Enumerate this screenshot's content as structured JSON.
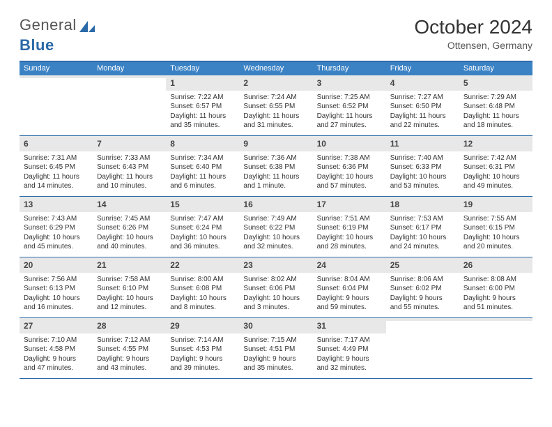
{
  "colors": {
    "header_blue": "#3b82c4",
    "border_blue": "#2b6aa8",
    "row_gray": "#e8e8e8",
    "white": "#ffffff",
    "text_dark": "#333333"
  },
  "typography": {
    "title_fontsize": 28,
    "location_fontsize": 14,
    "dayheader_fontsize": 11,
    "daynum_fontsize": 12,
    "details_fontsize": 10,
    "font_family": "Arial"
  },
  "logo": {
    "text_general": "General",
    "text_blue": "Blue",
    "general_color": "#555555",
    "blue_color": "#2b6aa8",
    "icon_fill": "#2b6aa8"
  },
  "title": "October 2024",
  "location": "Ottensen, Germany",
  "day_labels": [
    "Sunday",
    "Monday",
    "Tuesday",
    "Wednesday",
    "Thursday",
    "Friday",
    "Saturday"
  ],
  "weeks": [
    [
      {
        "n": "",
        "sunrise": "",
        "sunset": "",
        "daylight": ""
      },
      {
        "n": "",
        "sunrise": "",
        "sunset": "",
        "daylight": ""
      },
      {
        "n": "1",
        "sunrise": "Sunrise: 7:22 AM",
        "sunset": "Sunset: 6:57 PM",
        "daylight": "Daylight: 11 hours and 35 minutes."
      },
      {
        "n": "2",
        "sunrise": "Sunrise: 7:24 AM",
        "sunset": "Sunset: 6:55 PM",
        "daylight": "Daylight: 11 hours and 31 minutes."
      },
      {
        "n": "3",
        "sunrise": "Sunrise: 7:25 AM",
        "sunset": "Sunset: 6:52 PM",
        "daylight": "Daylight: 11 hours and 27 minutes."
      },
      {
        "n": "4",
        "sunrise": "Sunrise: 7:27 AM",
        "sunset": "Sunset: 6:50 PM",
        "daylight": "Daylight: 11 hours and 22 minutes."
      },
      {
        "n": "5",
        "sunrise": "Sunrise: 7:29 AM",
        "sunset": "Sunset: 6:48 PM",
        "daylight": "Daylight: 11 hours and 18 minutes."
      }
    ],
    [
      {
        "n": "6",
        "sunrise": "Sunrise: 7:31 AM",
        "sunset": "Sunset: 6:45 PM",
        "daylight": "Daylight: 11 hours and 14 minutes."
      },
      {
        "n": "7",
        "sunrise": "Sunrise: 7:33 AM",
        "sunset": "Sunset: 6:43 PM",
        "daylight": "Daylight: 11 hours and 10 minutes."
      },
      {
        "n": "8",
        "sunrise": "Sunrise: 7:34 AM",
        "sunset": "Sunset: 6:40 PM",
        "daylight": "Daylight: 11 hours and 6 minutes."
      },
      {
        "n": "9",
        "sunrise": "Sunrise: 7:36 AM",
        "sunset": "Sunset: 6:38 PM",
        "daylight": "Daylight: 11 hours and 1 minute."
      },
      {
        "n": "10",
        "sunrise": "Sunrise: 7:38 AM",
        "sunset": "Sunset: 6:36 PM",
        "daylight": "Daylight: 10 hours and 57 minutes."
      },
      {
        "n": "11",
        "sunrise": "Sunrise: 7:40 AM",
        "sunset": "Sunset: 6:33 PM",
        "daylight": "Daylight: 10 hours and 53 minutes."
      },
      {
        "n": "12",
        "sunrise": "Sunrise: 7:42 AM",
        "sunset": "Sunset: 6:31 PM",
        "daylight": "Daylight: 10 hours and 49 minutes."
      }
    ],
    [
      {
        "n": "13",
        "sunrise": "Sunrise: 7:43 AM",
        "sunset": "Sunset: 6:29 PM",
        "daylight": "Daylight: 10 hours and 45 minutes."
      },
      {
        "n": "14",
        "sunrise": "Sunrise: 7:45 AM",
        "sunset": "Sunset: 6:26 PM",
        "daylight": "Daylight: 10 hours and 40 minutes."
      },
      {
        "n": "15",
        "sunrise": "Sunrise: 7:47 AM",
        "sunset": "Sunset: 6:24 PM",
        "daylight": "Daylight: 10 hours and 36 minutes."
      },
      {
        "n": "16",
        "sunrise": "Sunrise: 7:49 AM",
        "sunset": "Sunset: 6:22 PM",
        "daylight": "Daylight: 10 hours and 32 minutes."
      },
      {
        "n": "17",
        "sunrise": "Sunrise: 7:51 AM",
        "sunset": "Sunset: 6:19 PM",
        "daylight": "Daylight: 10 hours and 28 minutes."
      },
      {
        "n": "18",
        "sunrise": "Sunrise: 7:53 AM",
        "sunset": "Sunset: 6:17 PM",
        "daylight": "Daylight: 10 hours and 24 minutes."
      },
      {
        "n": "19",
        "sunrise": "Sunrise: 7:55 AM",
        "sunset": "Sunset: 6:15 PM",
        "daylight": "Daylight: 10 hours and 20 minutes."
      }
    ],
    [
      {
        "n": "20",
        "sunrise": "Sunrise: 7:56 AM",
        "sunset": "Sunset: 6:13 PM",
        "daylight": "Daylight: 10 hours and 16 minutes."
      },
      {
        "n": "21",
        "sunrise": "Sunrise: 7:58 AM",
        "sunset": "Sunset: 6:10 PM",
        "daylight": "Daylight: 10 hours and 12 minutes."
      },
      {
        "n": "22",
        "sunrise": "Sunrise: 8:00 AM",
        "sunset": "Sunset: 6:08 PM",
        "daylight": "Daylight: 10 hours and 8 minutes."
      },
      {
        "n": "23",
        "sunrise": "Sunrise: 8:02 AM",
        "sunset": "Sunset: 6:06 PM",
        "daylight": "Daylight: 10 hours and 3 minutes."
      },
      {
        "n": "24",
        "sunrise": "Sunrise: 8:04 AM",
        "sunset": "Sunset: 6:04 PM",
        "daylight": "Daylight: 9 hours and 59 minutes."
      },
      {
        "n": "25",
        "sunrise": "Sunrise: 8:06 AM",
        "sunset": "Sunset: 6:02 PM",
        "daylight": "Daylight: 9 hours and 55 minutes."
      },
      {
        "n": "26",
        "sunrise": "Sunrise: 8:08 AM",
        "sunset": "Sunset: 6:00 PM",
        "daylight": "Daylight: 9 hours and 51 minutes."
      }
    ],
    [
      {
        "n": "27",
        "sunrise": "Sunrise: 7:10 AM",
        "sunset": "Sunset: 4:58 PM",
        "daylight": "Daylight: 9 hours and 47 minutes."
      },
      {
        "n": "28",
        "sunrise": "Sunrise: 7:12 AM",
        "sunset": "Sunset: 4:55 PM",
        "daylight": "Daylight: 9 hours and 43 minutes."
      },
      {
        "n": "29",
        "sunrise": "Sunrise: 7:14 AM",
        "sunset": "Sunset: 4:53 PM",
        "daylight": "Daylight: 9 hours and 39 minutes."
      },
      {
        "n": "30",
        "sunrise": "Sunrise: 7:15 AM",
        "sunset": "Sunset: 4:51 PM",
        "daylight": "Daylight: 9 hours and 35 minutes."
      },
      {
        "n": "31",
        "sunrise": "Sunrise: 7:17 AM",
        "sunset": "Sunset: 4:49 PM",
        "daylight": "Daylight: 9 hours and 32 minutes."
      },
      {
        "n": "",
        "sunrise": "",
        "sunset": "",
        "daylight": ""
      },
      {
        "n": "",
        "sunrise": "",
        "sunset": "",
        "daylight": ""
      }
    ]
  ]
}
